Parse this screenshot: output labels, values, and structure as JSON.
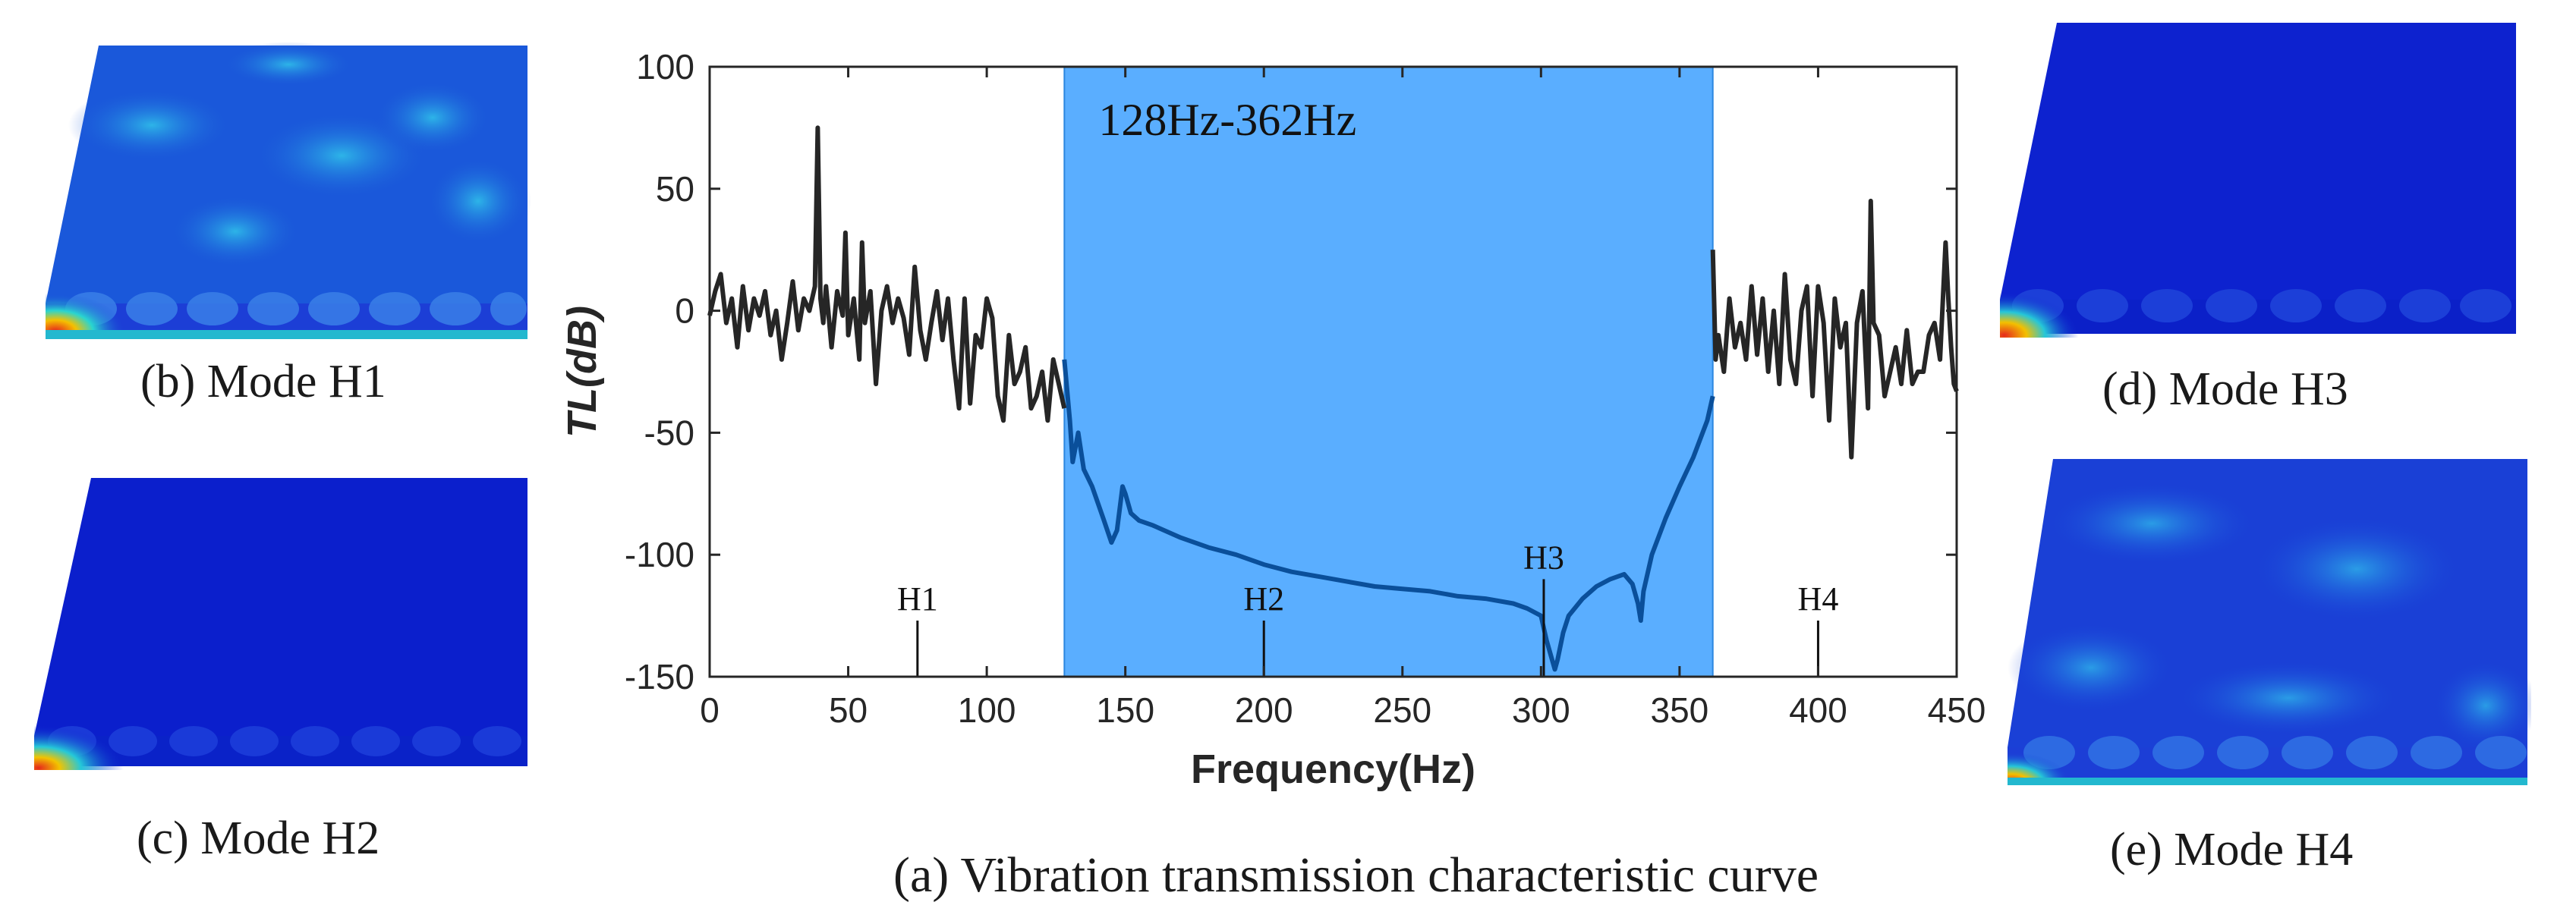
{
  "chart_data": {
    "type": "line",
    "title": "(a) Vibration transmission characteristic curve",
    "xlabel": "Frequency(Hz)",
    "ylabel": "TL(dB)",
    "xlim": [
      0,
      450
    ],
    "ylim": [
      -150,
      100
    ],
    "xticks": [
      0,
      50,
      100,
      150,
      200,
      250,
      300,
      350,
      400,
      450
    ],
    "yticks": [
      100,
      50,
      0,
      -50,
      -100,
      -150
    ],
    "grid": false,
    "band": {
      "label": "128Hz-362Hz",
      "x_start": 128,
      "x_end": 362,
      "color": "#5aaeff"
    },
    "markers": [
      {
        "label": "H1",
        "x": 75,
        "y_top": -127
      },
      {
        "label": "H2",
        "x": 200,
        "y_top": -127
      },
      {
        "label": "H3",
        "x": 301,
        "y_top": -110
      },
      {
        "label": "H4",
        "x": 400,
        "y_top": -127
      }
    ],
    "series": [
      {
        "name": "TL outside band gap",
        "color": "#262626",
        "x": [
          0,
          2,
          4,
          6,
          8,
          10,
          12,
          14,
          16,
          18,
          20,
          22,
          24,
          26,
          28,
          30,
          32,
          34,
          36,
          38,
          39,
          40,
          41,
          42,
          44,
          46,
          48,
          49,
          50,
          52,
          54,
          55,
          56,
          58,
          60,
          62,
          64,
          66,
          68,
          70,
          72,
          74,
          76,
          78,
          80,
          82,
          84,
          86,
          88,
          90,
          92,
          94,
          96,
          98,
          100,
          102,
          104,
          106,
          108,
          110,
          112,
          114,
          116,
          118,
          120,
          122,
          124,
          126,
          128
        ],
        "y": [
          -2,
          8,
          15,
          -5,
          5,
          -15,
          10,
          -8,
          5,
          -2,
          8,
          -10,
          0,
          -20,
          -5,
          12,
          -8,
          5,
          0,
          10,
          75,
          5,
          -5,
          10,
          -15,
          8,
          -2,
          32,
          -10,
          5,
          -20,
          28,
          -5,
          8,
          -30,
          0,
          10,
          -5,
          5,
          -3,
          -18,
          18,
          -8,
          -20,
          -5,
          8,
          -12,
          5,
          -20,
          -40,
          5,
          -38,
          -10,
          -15,
          5,
          -3,
          -35,
          -45,
          -10,
          -30,
          -25,
          -15,
          -40,
          -35,
          -25,
          -45,
          -20,
          -30,
          -40
        ]
      },
      {
        "name": "TL within band gap",
        "color": "#0a4f9a",
        "x": [
          128,
          130,
          131,
          133,
          135,
          138,
          142,
          145,
          147,
          149,
          150,
          152,
          155,
          160,
          170,
          180,
          190,
          200,
          210,
          220,
          230,
          240,
          250,
          260,
          270,
          280,
          290,
          295,
          300,
          302,
          304,
          305,
          306,
          308,
          310,
          315,
          320,
          325,
          330,
          333,
          335,
          336,
          337,
          340,
          345,
          350,
          355,
          360,
          362
        ],
        "y": [
          -20,
          -45,
          -62,
          -50,
          -65,
          -72,
          -85,
          -95,
          -90,
          -72,
          -75,
          -83,
          -86,
          -88,
          -93,
          -97,
          -100,
          -104,
          -107,
          -109,
          -111,
          -113,
          -114,
          -115,
          -117,
          -118,
          -120,
          -122,
          -125,
          -135,
          -143,
          -147,
          -143,
          -132,
          -125,
          -118,
          -113,
          -110,
          -108,
          -112,
          -120,
          -127,
          -115,
          -100,
          -85,
          -72,
          -60,
          -45,
          -35
        ]
      },
      {
        "name": "TL above band gap",
        "color": "#262626",
        "x": [
          362,
          363,
          364,
          366,
          368,
          370,
          372,
          374,
          376,
          378,
          380,
          382,
          384,
          386,
          388,
          390,
          392,
          394,
          396,
          398,
          400,
          402,
          404,
          406,
          408,
          410,
          412,
          414,
          416,
          418,
          419,
          420,
          422,
          424,
          426,
          428,
          430,
          432,
          434,
          436,
          438,
          440,
          442,
          444,
          446,
          447,
          448,
          449,
          450
        ],
        "y": [
          25,
          -20,
          -10,
          -25,
          5,
          -15,
          -5,
          -20,
          10,
          -18,
          5,
          -25,
          0,
          -30,
          15,
          -20,
          -30,
          0,
          10,
          -35,
          10,
          -5,
          -45,
          5,
          -15,
          -5,
          -60,
          -5,
          8,
          -40,
          45,
          -5,
          -10,
          -35,
          -25,
          -15,
          -30,
          -8,
          -30,
          -25,
          -25,
          -10,
          -5,
          -20,
          28,
          5,
          -15,
          -30,
          -33
        ]
      }
    ]
  },
  "captions": {
    "mode_h1": "(b) Mode H1",
    "mode_h2": "(c) Mode H2",
    "mode_h3": "(d) Mode H3",
    "mode_h4": "(e) Mode H4"
  },
  "colors": {
    "plate_blue": "#0a1fcf",
    "hot": "#e8281c",
    "band": "#5aaeff"
  }
}
